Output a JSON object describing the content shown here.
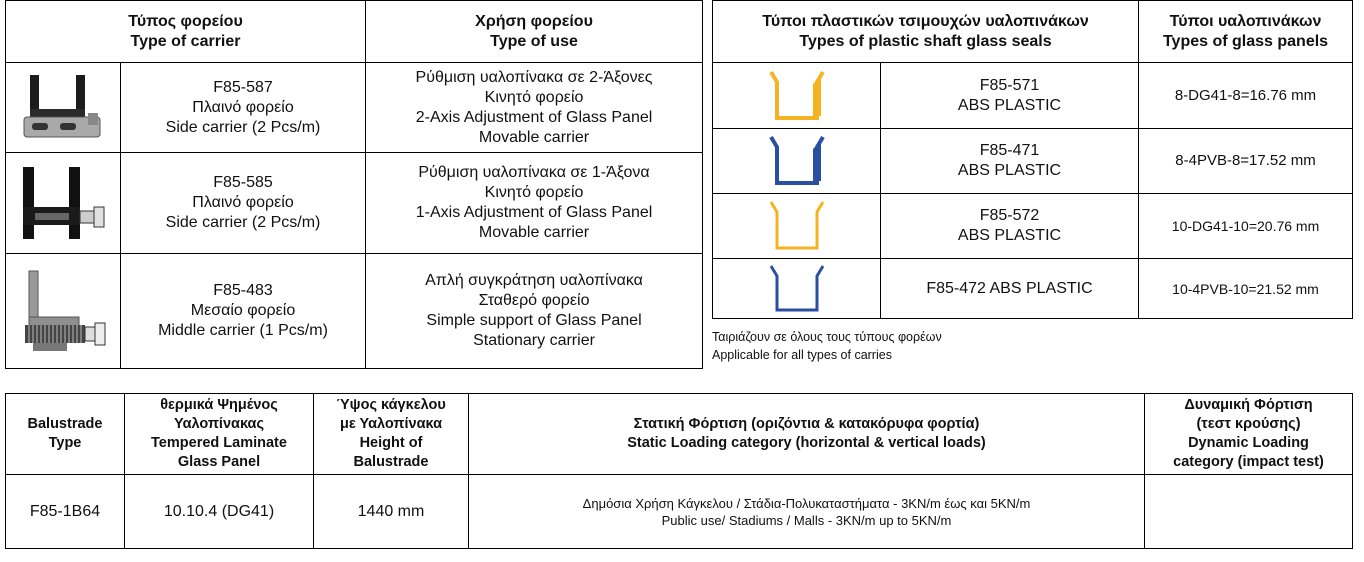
{
  "carrier_table": {
    "header": {
      "carrier": [
        "Τύπος φορείου",
        "Type of carrier"
      ],
      "use": [
        "Χρήση φορείου",
        "Type of use"
      ]
    },
    "rows": [
      {
        "carrier": [
          "F85-587",
          "Πλαινό φορείο",
          "Side carrier (2 Pcs/m)"
        ],
        "use": [
          "Ρύθμιση υαλοπίνακα σε 2-Άξονες",
          "Κινητό φορείο",
          "2-Axis Adjustment of Glass Panel",
          "Movable carrier"
        ]
      },
      {
        "carrier": [
          "F85-585",
          "Πλαινό φορείο",
          "Side carrier (2 Pcs/m)"
        ],
        "use": [
          "Ρύθμιση υαλοπίνακα σε 1-Άξονα",
          "Κινητό φορείο",
          "1-Axis Adjustment of Glass Panel",
          "Movable carrier"
        ]
      },
      {
        "carrier": [
          "F85-483",
          "Μεσαίο φορείο",
          "Middle carrier (1 Pcs/m)"
        ],
        "use": [
          "Απλή συγκράτηση υαλοπίνακα",
          "Σταθερό φορείο",
          "Simple support of Glass Panel",
          "Stationary carrier"
        ]
      }
    ]
  },
  "seal_table": {
    "header": {
      "seal": [
        "Τύποι πλαστικών τσιμουχών υαλοπινάκων",
        "Types of plastic shaft glass seals"
      ],
      "panel": [
        "Τύποι υαλοπινάκων",
        "Types of glass panels"
      ]
    },
    "rows": [
      {
        "seal": [
          "F85-571",
          "ABS PLASTIC"
        ],
        "panel": "8-DG41-8=16.76 mm"
      },
      {
        "seal": [
          "F85-471",
          "ABS PLASTIC"
        ],
        "panel": "8-4PVB-8=17.52 mm"
      },
      {
        "seal": [
          "F85-572",
          "ABS PLASTIC"
        ],
        "panel": "10-DG41-10=20.76 mm"
      },
      {
        "seal": [
          "F85-472 ABS PLASTIC"
        ],
        "panel": "10-4PVB-10=21.52 mm"
      }
    ],
    "note": [
      "Ταιριάζουν σε όλους τους τύπους φορέων",
      "Applicable for all types of carries"
    ]
  },
  "balustrade_table": {
    "header": [
      [
        "Balustrade",
        "Type"
      ],
      [
        "θερμικά Ψημένος",
        "Υαλοπίνακας",
        "Tempered Laminate",
        "Glass Panel"
      ],
      [
        "Ύψος κάγκελου",
        "με Υαλοπίνακα",
        "Height of",
        "Balustrade"
      ],
      [
        "Στατική Φόρτιση (οριζόντια & κατακόρυφα φορτία)",
        "Static Loading category (horizontal & vertical loads)"
      ],
      [
        "Δυναμική Φόρτιση",
        "(τεστ κρούσης)",
        "Dynamic Loading",
        "category (impact test)"
      ]
    ],
    "rows": [
      [
        "F85-1B64",
        "10.10.4 (DG41)",
        "1440 mm",
        [
          "Δημόσια Χρήση Κάγκελου / Στάδια-Πολυκαταστήματα - 3KN/m έως και 5KN/m",
          "Public use/ Stadiums / Malls - 3KN/m up to 5KN/m"
        ]
      ]
    ]
  }
}
